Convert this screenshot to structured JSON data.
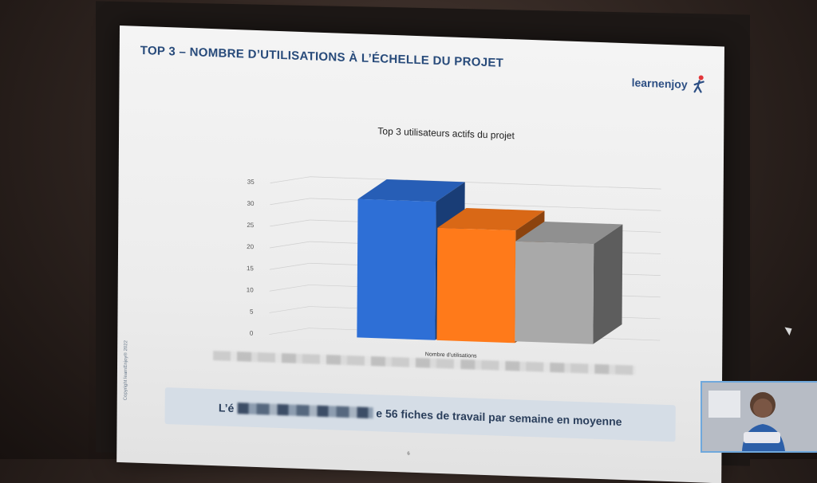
{
  "slide": {
    "title": "TOP 3 – NOMBRE D’UTILISATIONS À L’ÉCHELLE DU PROJET",
    "logo_text": "learnenjoy",
    "copyright": "Copyright learnEnjoy® 2022",
    "banner_prefix": "L’é",
    "banner_suffix": "e 56 fiches de travail par semaine en moyenne",
    "page_number": "6"
  },
  "chart_data": {
    "type": "bar",
    "title": "Top 3 utilisateurs actifs du projet",
    "xlabel": "Nombre d'utilisations",
    "ylabel": "",
    "categories": [
      "Nombre d'utilisations"
    ],
    "series": [
      {
        "values": [
          32
        ],
        "color": "#2e6fd6"
      },
      {
        "values": [
          26
        ],
        "color": "#ff7a1a"
      },
      {
        "values": [
          23.5
        ],
        "color": "#a9a9a9"
      }
    ],
    "ylim": [
      0,
      35
    ],
    "yticks": [
      "0",
      "5",
      "10",
      "15",
      "20",
      "25",
      "30",
      "35"
    ],
    "grid": true,
    "style": "3d"
  },
  "colors": {
    "title": "#274a7a",
    "logo_accent": "#e2363a"
  }
}
